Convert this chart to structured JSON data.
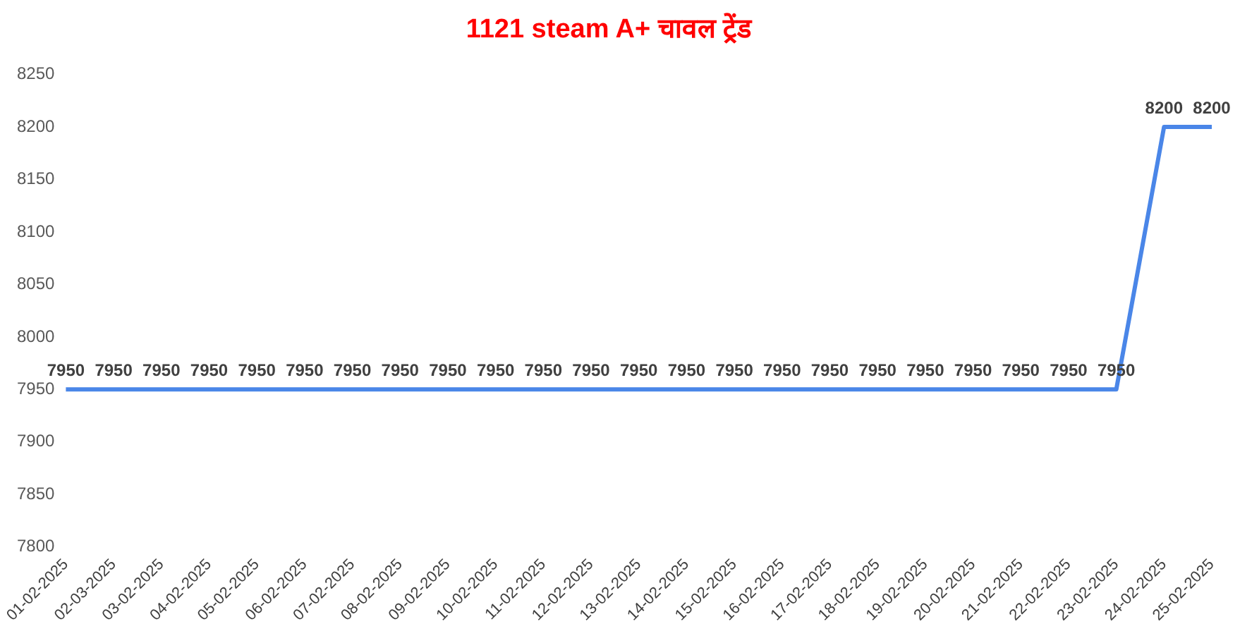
{
  "chart_data": {
    "type": "line",
    "title": "1121 steam A+ चावल ट्रेंड",
    "categories": [
      "01-02-2025",
      "02-03-2025",
      "03-02-2025",
      "04-02-2025",
      "05-02-2025",
      "06-02-2025",
      "07-02-2025",
      "08-02-2025",
      "09-02-2025",
      "10-02-2025",
      "11-02-2025",
      "12-02-2025",
      "13-02-2025",
      "14-02-2025",
      "15-02-2025",
      "16-02-2025",
      "17-02-2025",
      "18-02-2025",
      "19-02-2025",
      "20-02-2025",
      "21-02-2025",
      "22-02-2025",
      "23-02-2025",
      "24-02-2025",
      "25-02-2025"
    ],
    "series": [
      {
        "color": "#4a86e8",
        "values": [
          7950,
          7950,
          7950,
          7950,
          7950,
          7950,
          7950,
          7950,
          7950,
          7950,
          7950,
          7950,
          7950,
          7950,
          7950,
          7950,
          7950,
          7950,
          7950,
          7950,
          7950,
          7950,
          7950,
          8200,
          8200
        ]
      }
    ],
    "ylim": [
      7800,
      8250
    ],
    "yticks": [
      7800,
      7850,
      7900,
      7950,
      8000,
      8050,
      8100,
      8150,
      8200,
      8250
    ],
    "grid": false,
    "legend": false,
    "marker": "none",
    "line_style": "solid",
    "data_labels": true
  }
}
